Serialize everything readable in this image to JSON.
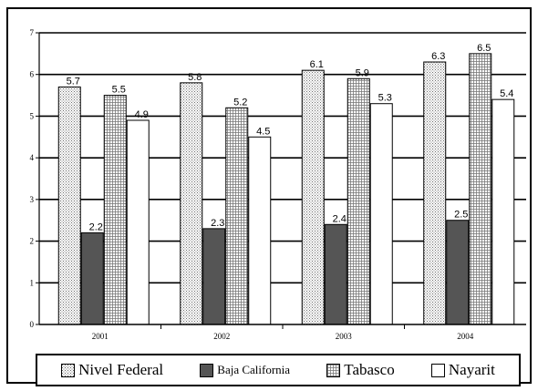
{
  "chart_data": {
    "type": "bar",
    "categories": [
      "2001",
      "2002",
      "2003",
      "2004"
    ],
    "series": [
      {
        "name": "Nivel Federal",
        "values": [
          5.7,
          5.8,
          6.1,
          6.3
        ],
        "pattern": "dots"
      },
      {
        "name": "Baja California",
        "values": [
          2.2,
          2.3,
          2.4,
          2.5
        ],
        "pattern": "solid",
        "color": "#555555"
      },
      {
        "name": "Tabasco",
        "values": [
          5.5,
          5.2,
          5.9,
          6.5
        ],
        "pattern": "grid"
      },
      {
        "name": "Nayarit",
        "values": [
          4.9,
          4.5,
          5.3,
          5.4
        ],
        "pattern": "white"
      }
    ],
    "data_labels": [
      [
        "5.7",
        "5.8",
        "6.1",
        "6.3"
      ],
      [
        "2.2",
        "2.3",
        "2.4",
        "2.5"
      ],
      [
        "5.5",
        "5.2",
        "5.9",
        "6.5"
      ],
      [
        "4.9",
        "4.5",
        "5.3",
        "5.4"
      ]
    ],
    "y_ticks": [
      "0",
      "1",
      "2",
      "3",
      "4",
      "5",
      "6",
      "7"
    ],
    "ylim": [
      0,
      7
    ],
    "grid": true,
    "legend_position": "bottom",
    "title": "",
    "xlabel": "",
    "ylabel": ""
  }
}
